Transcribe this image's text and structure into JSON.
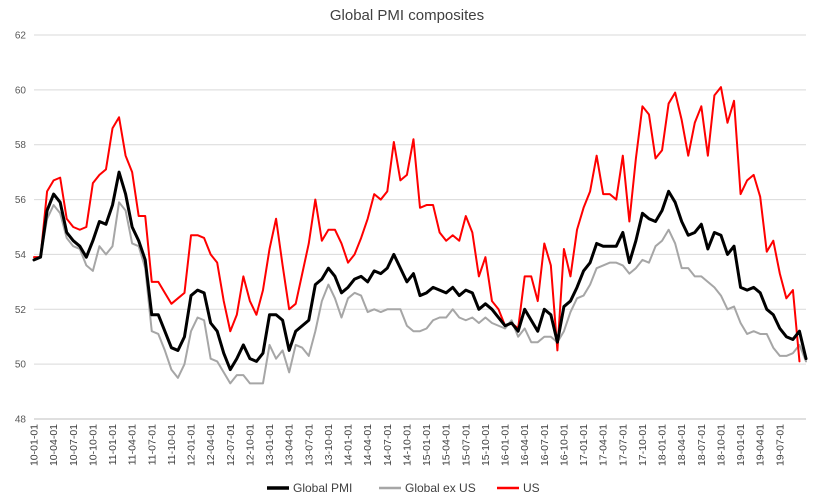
{
  "chart_data": {
    "type": "line",
    "title": "Global PMI composites",
    "xlabel": "",
    "ylabel": "",
    "ylim": [
      48,
      62
    ],
    "yticks": [
      48,
      50,
      52,
      54,
      56,
      58,
      60,
      62
    ],
    "grid": true,
    "legend_placement": "bottom",
    "x_labels": [
      "10-01-01",
      "10-04-01",
      "10-07-01",
      "10-10-01",
      "11-01-01",
      "11-04-01",
      "11-07-01",
      "11-10-01",
      "12-01-01",
      "12-04-01",
      "12-07-01",
      "12-10-01",
      "13-01-01",
      "13-04-01",
      "13-07-01",
      "13-10-01",
      "14-01-01",
      "14-04-01",
      "14-07-01",
      "14-10-01",
      "15-01-01",
      "15-04-01",
      "15-07-01",
      "15-10-01",
      "16-01-01",
      "16-04-01",
      "16-07-01",
      "16-10-01",
      "17-01-01",
      "17-04-01",
      "17-07-01",
      "17-10-01",
      "18-01-01",
      "18-04-01",
      "18-07-01",
      "18-10-01",
      "19-01-01",
      "19-04-01",
      "19-07-01"
    ],
    "points_per_label": 3,
    "series": [
      {
        "name": "Global PMI",
        "color": "#000000",
        "width": 3,
        "values": [
          53.8,
          53.9,
          55.6,
          56.2,
          55.9,
          54.8,
          54.5,
          54.3,
          53.9,
          54.5,
          55.2,
          55.1,
          55.8,
          57.0,
          56.2,
          55.0,
          54.5,
          53.8,
          51.8,
          51.8,
          51.2,
          50.6,
          50.5,
          51.0,
          52.5,
          52.7,
          52.6,
          51.5,
          51.2,
          50.4,
          49.8,
          50.2,
          50.7,
          50.2,
          50.1,
          50.4,
          51.8,
          51.8,
          51.6,
          50.5,
          51.2,
          51.4,
          51.6,
          52.9,
          53.1,
          53.5,
          53.2,
          52.6,
          52.8,
          53.1,
          53.2,
          53.0,
          53.4,
          53.3,
          53.5,
          54.0,
          53.5,
          53.0,
          53.3,
          52.5,
          52.6,
          52.8,
          52.7,
          52.6,
          52.8,
          52.5,
          52.7,
          52.6,
          52.0,
          52.2,
          52.0,
          51.7,
          51.4,
          51.5,
          51.2,
          52.0,
          51.6,
          51.2,
          52.0,
          51.8,
          50.8,
          52.1,
          52.3,
          52.8,
          53.4,
          53.7,
          54.4,
          54.3,
          54.3,
          54.3,
          54.8,
          53.7,
          54.5,
          55.5,
          55.3,
          55.2,
          55.6,
          56.3,
          55.9,
          55.2,
          54.7,
          54.8,
          55.1,
          54.2,
          54.8,
          54.7,
          54.0,
          54.3,
          52.8,
          52.7,
          52.8,
          52.6,
          52.0,
          51.8,
          51.3,
          51.0,
          50.9,
          51.2,
          50.2
        ]
      },
      {
        "name": "Global ex US",
        "color": "#a6a6a6",
        "width": 2,
        "values": [
          53.8,
          53.9,
          55.3,
          55.8,
          55.5,
          54.6,
          54.3,
          54.2,
          53.6,
          53.4,
          54.3,
          54.0,
          54.3,
          55.9,
          55.6,
          54.4,
          54.3,
          53.5,
          51.2,
          51.1,
          50.5,
          49.8,
          49.5,
          50.0,
          51.2,
          51.7,
          51.6,
          50.2,
          50.1,
          49.7,
          49.3,
          49.6,
          49.6,
          49.3,
          49.3,
          49.3,
          50.7,
          50.2,
          50.5,
          49.7,
          50.7,
          50.6,
          50.3,
          51.2,
          52.3,
          52.9,
          52.4,
          51.7,
          52.4,
          52.6,
          52.5,
          51.9,
          52.0,
          51.9,
          52.0,
          52.0,
          52.0,
          51.4,
          51.2,
          51.2,
          51.3,
          51.6,
          51.7,
          51.7,
          52.0,
          51.7,
          51.6,
          51.7,
          51.5,
          51.7,
          51.5,
          51.4,
          51.3,
          51.6,
          51.0,
          51.3,
          50.8,
          50.8,
          51.0,
          51.0,
          50.8,
          51.2,
          51.9,
          52.4,
          52.5,
          52.9,
          53.5,
          53.6,
          53.7,
          53.7,
          53.6,
          53.3,
          53.5,
          53.8,
          53.7,
          54.3,
          54.5,
          54.9,
          54.4,
          53.5,
          53.5,
          53.2,
          53.2,
          53.0,
          52.8,
          52.5,
          52.0,
          52.1,
          51.5,
          51.1,
          51.2,
          51.1,
          51.1,
          50.6,
          50.3,
          50.3,
          50.4,
          50.7,
          50.1
        ]
      },
      {
        "name": "US",
        "color": "#ff0000",
        "width": 2,
        "values": [
          53.9,
          53.9,
          56.3,
          56.7,
          56.8,
          55.3,
          55.0,
          54.9,
          55.0,
          56.6,
          56.9,
          57.1,
          58.6,
          59.0,
          57.6,
          57.0,
          55.4,
          55.4,
          53.0,
          53.0,
          52.6,
          52.2,
          52.4,
          52.6,
          54.7,
          54.7,
          54.6,
          54.0,
          53.7,
          52.3,
          51.2,
          51.8,
          53.2,
          52.3,
          51.8,
          52.7,
          54.2,
          55.3,
          53.6,
          52.0,
          52.2,
          53.3,
          54.4,
          56.0,
          54.5,
          54.9,
          54.9,
          54.4,
          53.7,
          54.0,
          54.6,
          55.3,
          56.2,
          56.0,
          56.3,
          58.1,
          56.7,
          56.9,
          58.2,
          55.7,
          55.8,
          55.8,
          54.8,
          54.5,
          54.7,
          54.5,
          55.4,
          54.8,
          53.2,
          53.9,
          52.3,
          52.0,
          51.4,
          51.5,
          51.3,
          53.2,
          53.2,
          52.3,
          54.4,
          53.6,
          50.5,
          54.2,
          53.2,
          54.9,
          55.7,
          56.3,
          57.6,
          56.2,
          56.2,
          56.0,
          57.6,
          55.2,
          57.5,
          59.4,
          59.1,
          57.5,
          57.8,
          59.5,
          59.9,
          58.9,
          57.6,
          58.8,
          59.4,
          57.6,
          59.8,
          60.1,
          58.8,
          59.6,
          56.2,
          56.7,
          56.9,
          56.1,
          54.1,
          54.5,
          53.3,
          52.4,
          52.7,
          50.1
        ]
      }
    ]
  }
}
